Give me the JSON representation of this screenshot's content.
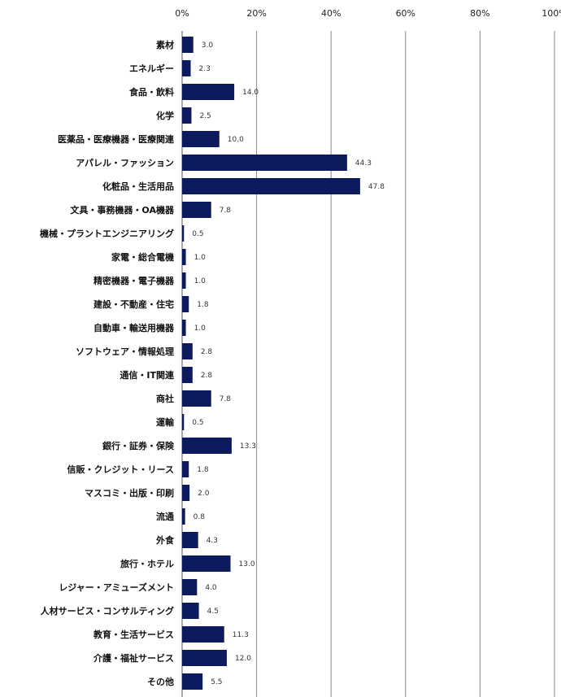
{
  "chart_data": {
    "type": "bar",
    "orientation": "horizontal",
    "xlim": [
      0,
      100
    ],
    "x_ticks": [
      "0%",
      "20%",
      "40%",
      "60%",
      "80%",
      "100%"
    ],
    "grid": true,
    "bar_color": "#0d1b5e",
    "categories": [
      "素材",
      "エネルギー",
      "食品・飲料",
      "化学",
      "医薬品・医療機器・医療関連",
      "アパレル・ファッション",
      "化粧品・生活用品",
      "文具・事務機器・OA機器",
      "機械・プラントエンジニアリング",
      "家電・総合電機",
      "精密機器・電子機器",
      "建設・不動産・住宅",
      "自動車・輸送用機器",
      "ソフトウェア・情報処理",
      "通信・IT関連",
      "商社",
      "運輸",
      "銀行・証券・保険",
      "信販・クレジット・リース",
      "マスコミ・出版・印刷",
      "流通",
      "外食",
      "旅行・ホテル",
      "レジャー・アミューズメント",
      "人材サービス・コンサルティング",
      "教育・生活サービス",
      "介護・福祉サービス",
      "その他"
    ],
    "values": [
      3.0,
      2.3,
      14.0,
      2.5,
      10.0,
      44.3,
      47.8,
      7.8,
      0.5,
      1.0,
      1.0,
      1.8,
      1.0,
      2.8,
      2.8,
      7.8,
      0.5,
      13.3,
      1.8,
      2.0,
      0.8,
      4.3,
      13.0,
      4.0,
      4.5,
      11.3,
      12.0,
      5.5
    ],
    "value_labels": [
      "3.0",
      "2.3",
      "14.0",
      "2.5",
      "10.0",
      "44.3",
      "47.8",
      "7.8",
      "0.5",
      "1.0",
      "1.0",
      "1.8",
      "1.0",
      "2.8",
      "2.8",
      "7.8",
      "0.5",
      "13.3",
      "1.8",
      "2.0",
      "0.8",
      "4.3",
      "13.0",
      "4.0",
      "4.5",
      "11.3",
      "12.0",
      "5.5"
    ]
  }
}
